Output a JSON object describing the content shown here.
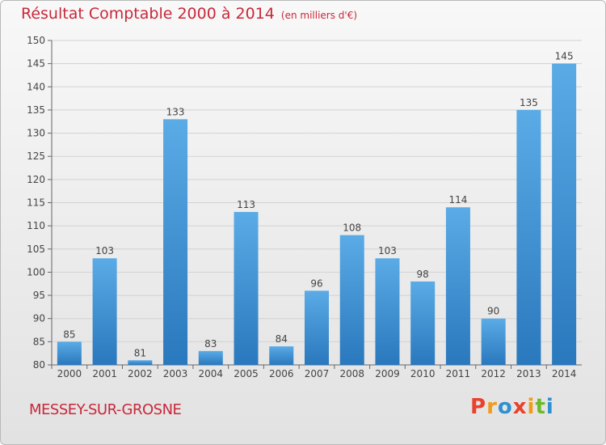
{
  "header": {
    "title": "Résultat Comptable 2000 à 2014",
    "unit": "(en milliers d'€)"
  },
  "footer": {
    "location": "MESSEY-SUR-GROSNE",
    "logo_letters": [
      "P",
      "r",
      "o",
      "x",
      "i",
      "t",
      "i"
    ],
    "logo_colors": [
      "#e8412c",
      "#f39a1b",
      "#2f8fd0",
      "#e8412c",
      "#f39a1b",
      "#6cba2c",
      "#2f8fd0"
    ]
  },
  "colors": {
    "bar_top": "#5aabe6",
    "bar_bottom": "#2a78bd",
    "title": "#c8283a"
  },
  "chart_data": {
    "type": "bar",
    "categories": [
      "2000",
      "2001",
      "2002",
      "2003",
      "2004",
      "2005",
      "2006",
      "2007",
      "2008",
      "2009",
      "2010",
      "2011",
      "2012",
      "2013",
      "2014"
    ],
    "values": [
      85,
      103,
      81,
      133,
      83,
      113,
      84,
      96,
      108,
      103,
      98,
      114,
      90,
      135,
      145
    ],
    "ylim": [
      80,
      150
    ],
    "yticks": [
      80,
      85,
      90,
      95,
      100,
      105,
      110,
      115,
      120,
      125,
      130,
      135,
      140,
      145,
      150
    ],
    "grid": true
  }
}
